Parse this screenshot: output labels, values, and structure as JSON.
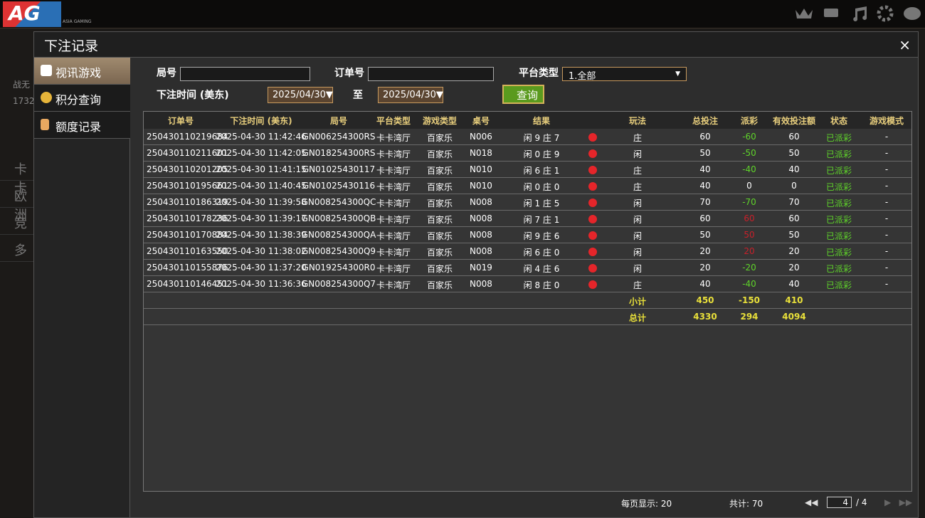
{
  "header": {
    "logo": "AG",
    "logo_sub": "ASIA GAMING"
  },
  "background": {
    "user": "战无",
    "balance": "1732",
    "menu": [
      "卡卡",
      "欧洲",
      "竞",
      "多"
    ]
  },
  "dialog": {
    "title": "下注记录",
    "close": "×"
  },
  "sidebar": [
    "视讯游戏",
    "积分查询",
    "额度记录"
  ],
  "filters": {
    "round_label": "局号",
    "order_label": "订单号",
    "platform_label": "平台类型",
    "platform_value": "1.全部",
    "time_label": "下注时间 (美东)",
    "date_from": "2025/04/30▼",
    "to": "至",
    "date_to": "2025/04/30▼",
    "query": "查询"
  },
  "table": {
    "columns": [
      "订单号",
      "下注时间 (美东)",
      "局号",
      "平台类型",
      "游戏类型",
      "桌号",
      "结果",
      "玩法",
      "总投注",
      "派彩",
      "有效投注额",
      "状态",
      "游戏模式"
    ],
    "rows": [
      [
        "250430110219684",
        "2025-04-30 11:42:46",
        "GN006254300RS",
        "卡卡湾厅",
        "百家乐",
        "N006",
        "闲 9 庄 7",
        "庄",
        60,
        -60,
        60,
        "已派彩",
        "-"
      ],
      [
        "250430110211601",
        "2025-04-30 11:42:05",
        "GN018254300RS",
        "卡卡湾厅",
        "百家乐",
        "N018",
        "闲 0 庄 9",
        "闲",
        50,
        -50,
        50,
        "已派彩",
        "-"
      ],
      [
        "250430110201205",
        "2025-04-30 11:41:15",
        "GN01025430117",
        "卡卡湾厅",
        "百家乐",
        "N010",
        "闲 6 庄 1",
        "庄",
        40,
        -40,
        40,
        "已派彩",
        "-"
      ],
      [
        "250430110195661",
        "2025-04-30 11:40:45",
        "GN01025430116",
        "卡卡湾厅",
        "百家乐",
        "N010",
        "闲 0 庄 0",
        "庄",
        40,
        0,
        0,
        "已派彩",
        "-"
      ],
      [
        "250430110186319",
        "2025-04-30 11:39:58",
        "GN008254300QC",
        "卡卡湾厅",
        "百家乐",
        "N008",
        "闲 1 庄 5",
        "闲",
        70,
        -70,
        70,
        "已派彩",
        "-"
      ],
      [
        "250430110178236",
        "2025-04-30 11:39:17",
        "GN008254300QB",
        "卡卡湾厅",
        "百家乐",
        "N008",
        "闲 7 庄 1",
        "闲",
        60,
        60,
        60,
        "已派彩",
        "-"
      ],
      [
        "250430110170884",
        "2025-04-30 11:38:39",
        "GN008254300QA",
        "卡卡湾厅",
        "百家乐",
        "N008",
        "闲 9 庄 6",
        "闲",
        50,
        50,
        50,
        "已派彩",
        "-"
      ],
      [
        "250430110163550",
        "2025-04-30 11:38:02",
        "GN008254300Q9",
        "卡卡湾厅",
        "百家乐",
        "N008",
        "闲 6 庄 0",
        "闲",
        20,
        20,
        20,
        "已派彩",
        "-"
      ],
      [
        "250430110155876",
        "2025-04-30 11:37:20",
        "GN019254300R0",
        "卡卡湾厅",
        "百家乐",
        "N019",
        "闲 4 庄 6",
        "闲",
        20,
        -20,
        20,
        "已派彩",
        "-"
      ],
      [
        "250430110146451",
        "2025-04-30 11:36:36",
        "GN008254300Q7",
        "卡卡湾厅",
        "百家乐",
        "N008",
        "闲 8 庄 0",
        "庄",
        40,
        -40,
        40,
        "已派彩",
        "-"
      ]
    ],
    "subtotal": {
      "label": "小计",
      "values": [
        450,
        -150,
        410
      ]
    },
    "total": {
      "label": "总计",
      "values": [
        4330,
        294,
        4094
      ]
    }
  },
  "footer": {
    "per_page": "每页显示: 20",
    "count": "共计: 70",
    "page": "4",
    "pages": "/ 4"
  }
}
